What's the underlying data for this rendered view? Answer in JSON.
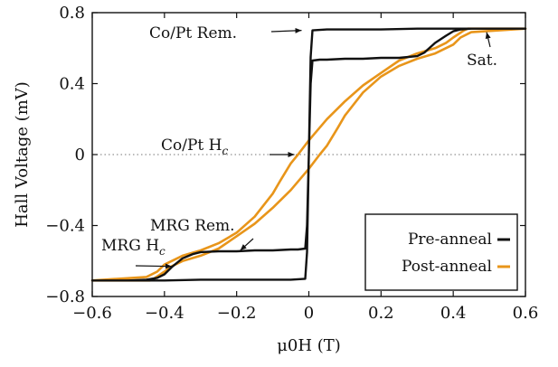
{
  "chart_data": {
    "type": "line",
    "xlabel": "μ0H (T)",
    "ylabel": "Hall Voltage (mV)",
    "xlim": [
      -0.6,
      0.6
    ],
    "ylim": [
      -0.8,
      0.8
    ],
    "xticks": [
      -0.6,
      -0.4,
      -0.2,
      0,
      0.2,
      0.4,
      0.6
    ],
    "yticks": [
      -0.8,
      -0.4,
      0,
      0.4,
      0.8
    ],
    "xtick_labels": [
      "−0.6",
      "−0.4",
      "−0.2",
      "0",
      "0.2",
      "0.4",
      "0.6"
    ],
    "ytick_labels": [
      "−0.8",
      "−0.4",
      "0",
      "0.4",
      "0.8"
    ],
    "zero_line": "dotted",
    "legend_placement": "bottom-right",
    "colors": {
      "pre_anneal": "#111111",
      "post_anneal": "#e8951a"
    },
    "series": [
      {
        "name": "Pre-anneal",
        "color": "#111111",
        "x": [
          0.6,
          0.45,
          0.42,
          0.4,
          0.38,
          0.35,
          0.32,
          0.3,
          0.25,
          0.2,
          0.15,
          0.1,
          0.05,
          0.03,
          0.01,
          0.005,
          0.0,
          -0.005,
          -0.01,
          -0.05,
          -0.1,
          -0.2,
          -0.3,
          -0.4,
          -0.45,
          -0.5,
          -0.6,
          -0.6,
          -0.5,
          -0.45,
          -0.42,
          -0.4,
          -0.38,
          -0.35,
          -0.32,
          -0.3,
          -0.25,
          -0.2,
          -0.15,
          -0.1,
          -0.05,
          -0.03,
          -0.01,
          -0.005,
          0.0,
          0.005,
          0.01,
          0.05,
          0.1,
          0.2,
          0.3,
          0.4,
          0.45,
          0.5,
          0.6
        ],
        "y": [
          0.71,
          0.71,
          0.705,
          0.695,
          0.67,
          0.63,
          0.575,
          0.555,
          0.545,
          0.545,
          0.54,
          0.54,
          0.535,
          0.535,
          0.53,
          0.4,
          0.0,
          -0.55,
          -0.7,
          -0.705,
          -0.705,
          -0.705,
          -0.705,
          -0.71,
          -0.71,
          -0.71,
          -0.71,
          -0.71,
          -0.71,
          -0.705,
          -0.695,
          -0.675,
          -0.635,
          -0.585,
          -0.56,
          -0.55,
          -0.545,
          -0.545,
          -0.54,
          -0.54,
          -0.535,
          -0.535,
          -0.53,
          -0.4,
          0.0,
          0.55,
          0.7,
          0.705,
          0.705,
          0.705,
          0.71,
          0.71,
          0.71,
          0.71,
          0.71
        ]
      },
      {
        "name": "Post-anneal",
        "color": "#e8951a",
        "x": [
          0.6,
          0.44,
          0.43,
          0.4,
          0.38,
          0.35,
          0.3,
          0.25,
          0.2,
          0.15,
          0.1,
          0.05,
          0.0,
          -0.03,
          -0.05,
          -0.08,
          -0.1,
          -0.15,
          -0.2,
          -0.25,
          -0.3,
          -0.35,
          -0.4,
          -0.42,
          -0.45,
          -0.6,
          -0.6,
          -0.44,
          -0.43,
          -0.4,
          -0.38,
          -0.35,
          -0.3,
          -0.25,
          -0.2,
          -0.15,
          -0.1,
          -0.05,
          0.0,
          0.03,
          0.05,
          0.08,
          0.1,
          0.15,
          0.2,
          0.25,
          0.3,
          0.35,
          0.4,
          0.42,
          0.45,
          0.6
        ],
        "y": [
          0.71,
          0.71,
          0.7,
          0.66,
          0.63,
          0.6,
          0.57,
          0.53,
          0.46,
          0.39,
          0.3,
          0.2,
          0.08,
          0.0,
          -0.05,
          -0.15,
          -0.22,
          -0.35,
          -0.44,
          -0.5,
          -0.54,
          -0.57,
          -0.62,
          -0.66,
          -0.69,
          -0.71,
          -0.71,
          -0.71,
          -0.7,
          -0.66,
          -0.63,
          -0.6,
          -0.57,
          -0.53,
          -0.46,
          -0.39,
          -0.3,
          -0.2,
          -0.08,
          0.0,
          0.05,
          0.15,
          0.22,
          0.35,
          0.44,
          0.5,
          0.54,
          0.57,
          0.62,
          0.66,
          0.69,
          0.71
        ]
      }
    ],
    "annotations": [
      {
        "id": "co-pt-rem",
        "text": "Co/Pt Rem.",
        "point": [
          0.0,
          0.7
        ]
      },
      {
        "id": "co-pt-hc",
        "text": "Co/Pt Hc",
        "point": [
          0.0,
          0.0
        ]
      },
      {
        "id": "sat",
        "text": "Sat.",
        "point": [
          0.5,
          0.71
        ]
      },
      {
        "id": "mrg-rem",
        "text": "MRG Rem.",
        "point": [
          -0.18,
          -0.53
        ]
      },
      {
        "id": "mrg-hc",
        "text": "MRG Hc",
        "point": [
          -0.37,
          -0.62
        ]
      }
    ]
  }
}
